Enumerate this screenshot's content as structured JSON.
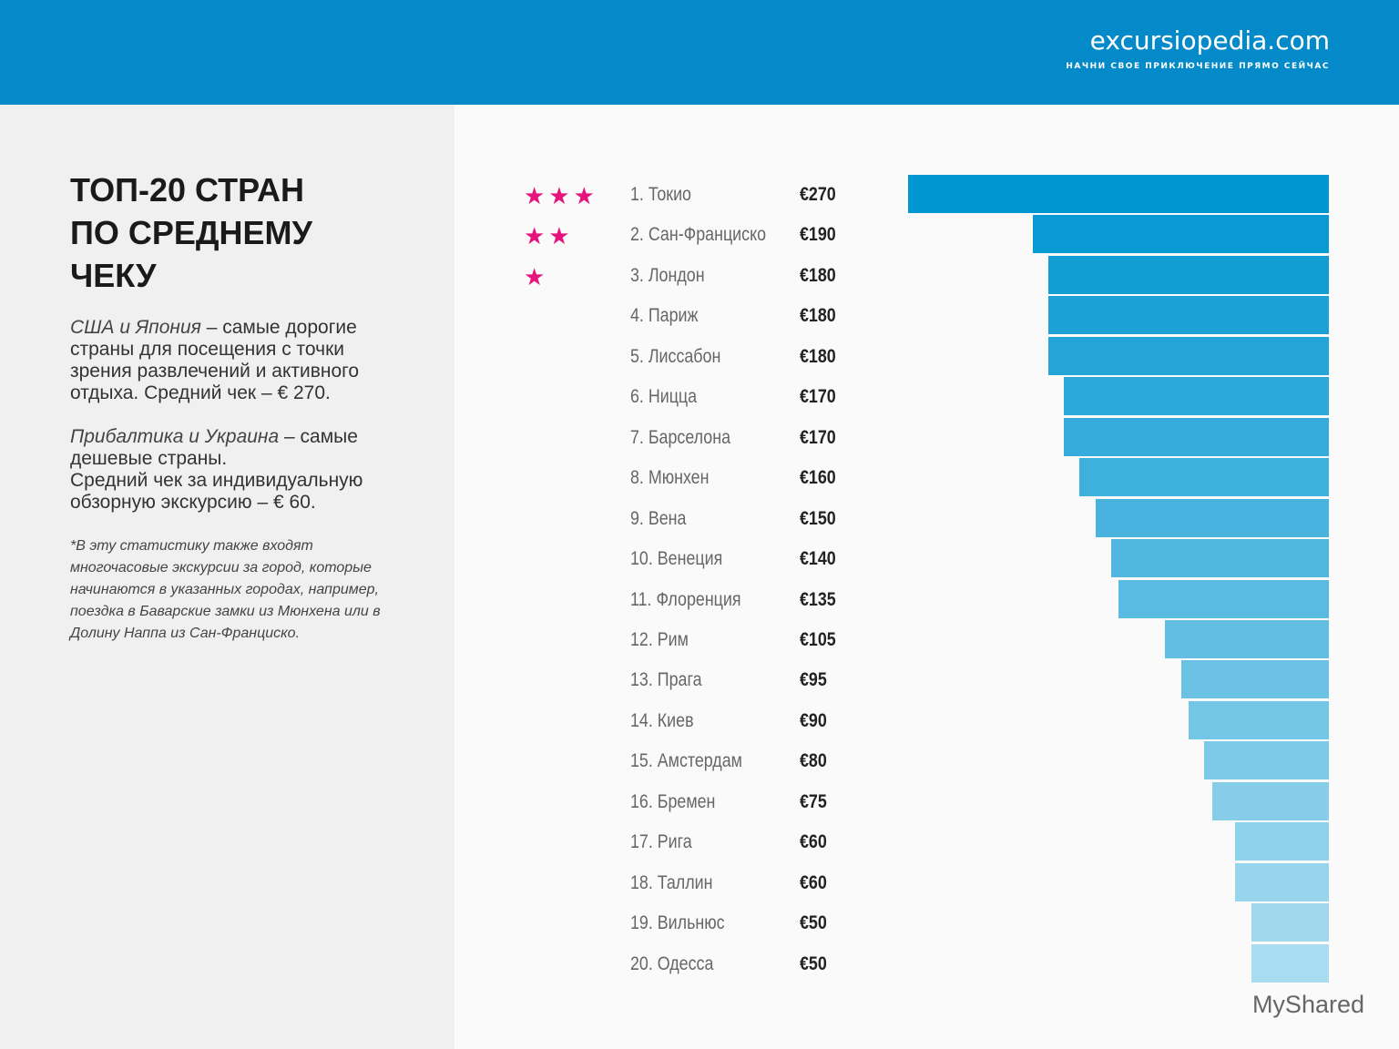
{
  "header": {
    "logo": "excursiopedia.com",
    "tagline": "НАЧНИ СВОЕ ПРИКЛЮЧЕНИЕ ПРЯМО СЕЙЧАС"
  },
  "left": {
    "title": "ТОП-20 СТРАН ПО СРЕДНЕМУ ЧЕКУ",
    "p1_em": "США и Япония",
    "p1_rest": " – самые дорогие страны для посещения с точки зрения развлечений и активного отдыха. Средний чек – € 270.",
    "p2_em": "Прибалтика и Украина",
    "p2_rest": " – самые дешевые страны.",
    "p2_line2": "Средний чек за индивидуальную обзорную экскурсию – € 60.",
    "note": "*В эту статистику также входят многочасовые экскурсии за город, которые начинаются в указанных городах, например, поездка в Баварские замки из Мюнхена или в Долину Наппа из Сан-Франциско."
  },
  "watermark": "MyShared",
  "chart_data": {
    "type": "bar",
    "orientation": "horizontal",
    "unit": "€",
    "categories": [
      "1. Токио",
      "2. Сан-Франциско",
      "3. Лондон",
      "4. Париж",
      "5. Лиссабон",
      "6. Ницца",
      "7. Барселона",
      "8. Мюнхен",
      "9. Вена",
      "10. Венеция",
      "11. Флоренция",
      "12. Рим",
      "13. Прага",
      "14. Киев",
      "15. Амстердам",
      "16. Бремен",
      "17. Рига",
      "18. Таллин",
      "19. Вильнюс",
      "20. Одесса"
    ],
    "values": [
      270,
      190,
      180,
      180,
      180,
      170,
      170,
      160,
      150,
      140,
      135,
      105,
      95,
      90,
      80,
      75,
      60,
      60,
      50,
      50
    ],
    "labels": [
      "€270",
      "€190",
      "€180",
      "€180",
      "€180",
      "€170",
      "€170",
      "€160",
      "€150",
      "€140",
      "€135",
      "€105",
      "€95",
      "€90",
      "€80",
      "€75",
      "€60",
      "€60",
      "€50",
      "€50"
    ],
    "stars": [
      3,
      2,
      1
    ],
    "colors": {
      "bar_start": "#0096d1",
      "bar_end": "#a9dcf0",
      "star": "#e6137d"
    }
  }
}
